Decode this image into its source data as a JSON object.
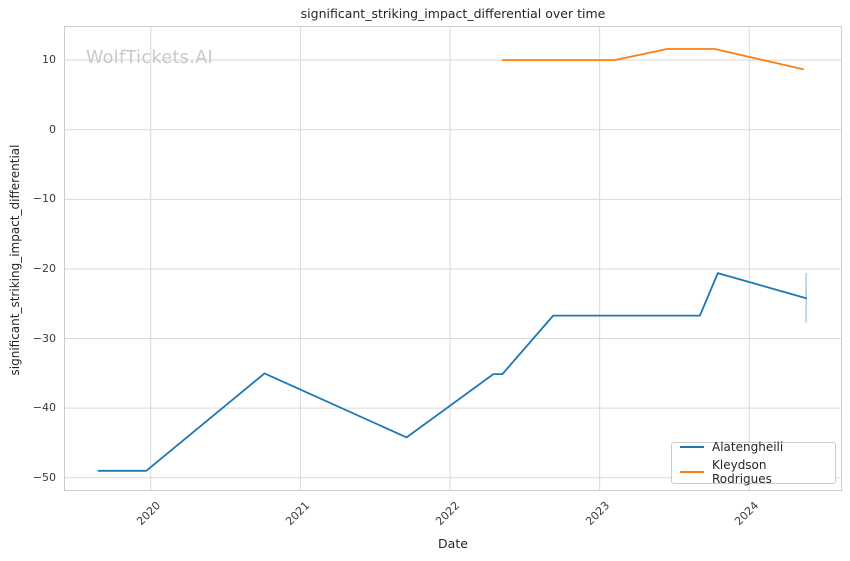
{
  "title": "significant_striking_impact_differential over time",
  "watermark": "WolfTickets.AI",
  "axes": {
    "x_label": "Date",
    "y_label": "significant_striking_impact_differential",
    "x_ticks": [
      {
        "label": "2020",
        "value": 2020
      },
      {
        "label": "2021",
        "value": 2021
      },
      {
        "label": "2022",
        "value": 2022
      },
      {
        "label": "2023",
        "value": 2023
      },
      {
        "label": "2024",
        "value": 2024
      }
    ],
    "y_ticks": [
      {
        "label": "10",
        "value": 10
      },
      {
        "label": "0",
        "value": 0
      },
      {
        "label": "−10",
        "value": -10
      },
      {
        "label": "−20",
        "value": -20
      },
      {
        "label": "−30",
        "value": -30
      },
      {
        "label": "−40",
        "value": -40
      },
      {
        "label": "−50",
        "value": -50
      }
    ],
    "x_range": [
      2019.42,
      2024.62
    ],
    "y_range": [
      -51.9,
      14.9
    ]
  },
  "legend": [
    {
      "label": "Alatengheili",
      "color": "#1f77b4"
    },
    {
      "label": "Kleydson Rodrigues",
      "color": "#ff7f0e"
    }
  ],
  "style": {
    "grid_color": "#d9d9d9",
    "border_color": "#cccccc",
    "line_width": 1.8,
    "error_bar_color": "rgba(31,119,180,0.45)"
  },
  "chart_data": {
    "type": "line",
    "title": "significant_striking_impact_differential over time",
    "xlabel": "Date",
    "ylabel": "significant_striking_impact_differential",
    "x_unit": "decimal_year",
    "grid": true,
    "legend_position": "lower right",
    "xlim": [
      2019.42,
      2024.62
    ],
    "ylim": [
      -51.9,
      14.9
    ],
    "series": [
      {
        "name": "Alatengheili",
        "color": "#1f77b4",
        "points": [
          [
            2019.65,
            -49.0
          ],
          [
            2019.97,
            -49.0
          ],
          [
            2020.76,
            -35.0
          ],
          [
            2021.71,
            -44.2
          ],
          [
            2022.29,
            -35.1
          ],
          [
            2022.35,
            -35.1
          ],
          [
            2022.69,
            -26.7
          ],
          [
            2023.67,
            -26.7
          ],
          [
            2023.79,
            -20.6
          ],
          [
            2024.38,
            -24.2
          ]
        ],
        "error_bar_last_point": {
          "x": 2024.38,
          "y_low": -27.7,
          "y_high": -20.6
        }
      },
      {
        "name": "Kleydson Rodrigues",
        "color": "#ff7f0e",
        "points": [
          [
            2022.35,
            10.0
          ],
          [
            2023.1,
            10.0
          ],
          [
            2023.45,
            11.6
          ],
          [
            2023.77,
            11.6
          ],
          [
            2024.36,
            8.7
          ]
        ]
      }
    ]
  }
}
